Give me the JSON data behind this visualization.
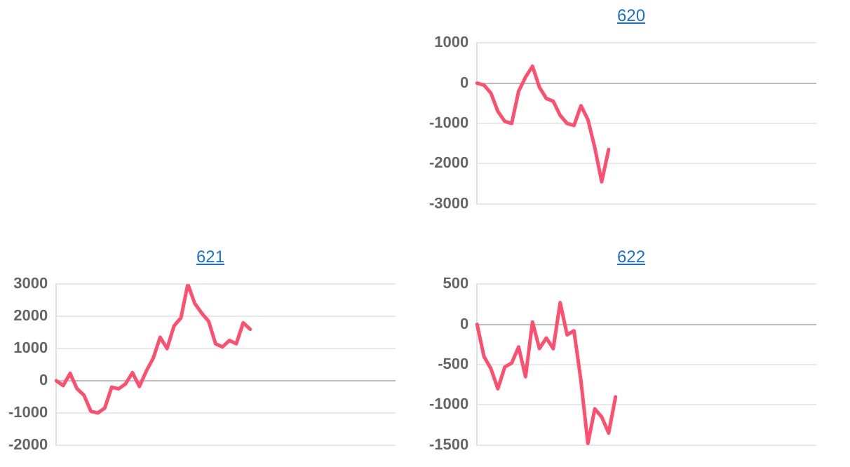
{
  "chart_data": [
    {
      "type": "line",
      "title": "620",
      "categories": [
        null,
        null,
        null,
        null,
        null,
        null,
        null,
        null,
        null,
        null,
        null,
        null,
        null,
        null,
        null,
        null,
        null,
        null,
        null,
        null,
        null,
        null,
        null,
        null,
        null,
        null,
        null,
        null,
        null,
        null,
        null,
        null,
        null,
        null,
        null,
        null,
        null,
        null,
        null,
        null,
        null,
        null,
        null,
        null,
        null,
        null,
        null,
        null,
        null,
        null
      ],
      "series": [
        {
          "color": "#ff4f6e",
          "values": [
            0,
            -50,
            -250,
            -700,
            -950,
            -1000,
            -200,
            150,
            420,
            -100,
            -380,
            -450,
            -800,
            -1000,
            -1050,
            -560,
            -900,
            -1600,
            -2450,
            -1650,
            null,
            null,
            null,
            null,
            null,
            null,
            null,
            null,
            null,
            null,
            null,
            null,
            null,
            null,
            null,
            null,
            null,
            null,
            null,
            null,
            null,
            null,
            null,
            null,
            null,
            null,
            null,
            null,
            null,
            null
          ]
        }
      ],
      "ylim": [
        -3000,
        1000
      ],
      "yticks": [
        -3000,
        -2000,
        -1000,
        0,
        1000
      ],
      "grid": "y",
      "legend": false,
      "marker": "none",
      "tick_labels": "y"
    },
    {
      "type": "line",
      "title": "621",
      "categories": [
        null,
        null,
        null,
        null,
        null,
        null,
        null,
        null,
        null,
        null,
        null,
        null,
        null,
        null,
        null,
        null,
        null,
        null,
        null,
        null,
        null,
        null,
        null,
        null,
        null,
        null,
        null,
        null,
        null,
        null,
        null,
        null,
        null,
        null,
        null,
        null,
        null,
        null,
        null,
        null,
        null,
        null,
        null,
        null,
        null,
        null,
        null,
        null,
        null,
        null
      ],
      "series": [
        {
          "color": "#ff4f6e",
          "values": [
            0,
            -150,
            230,
            -250,
            -450,
            -950,
            -1000,
            -850,
            -200,
            -250,
            -100,
            250,
            -180,
            300,
            700,
            1350,
            1000,
            1700,
            1950,
            3000,
            2400,
            2100,
            1850,
            1150,
            1050,
            1250,
            1150,
            1800,
            1600,
            null,
            null,
            null,
            null,
            null,
            null,
            null,
            null,
            null,
            null,
            null,
            null,
            null,
            null,
            null,
            null,
            null,
            null,
            null,
            null,
            null
          ]
        }
      ],
      "ylim": [
        -2000,
        3000
      ],
      "yticks": [
        -2000,
        -1000,
        0,
        1000,
        2000,
        3000
      ],
      "grid": "y",
      "legend": false,
      "marker": "none",
      "tick_labels": "y"
    },
    {
      "type": "line",
      "title": "622",
      "categories": [
        null,
        null,
        null,
        null,
        null,
        null,
        null,
        null,
        null,
        null,
        null,
        null,
        null,
        null,
        null,
        null,
        null,
        null,
        null,
        null,
        null,
        null,
        null,
        null,
        null,
        null,
        null,
        null,
        null,
        null,
        null,
        null,
        null,
        null,
        null,
        null,
        null,
        null,
        null,
        null,
        null,
        null,
        null,
        null,
        null,
        null,
        null,
        null,
        null,
        null
      ],
      "series": [
        {
          "color": "#ff4f6e",
          "values": [
            0,
            -400,
            -550,
            -800,
            -530,
            -480,
            -280,
            -650,
            30,
            -300,
            -170,
            -300,
            270,
            -130,
            -80,
            -700,
            -1480,
            -1050,
            -1150,
            -1350,
            -900,
            null,
            null,
            null,
            null,
            null,
            null,
            null,
            null,
            null,
            null,
            null,
            null,
            null,
            null,
            null,
            null,
            null,
            null,
            null,
            null,
            null,
            null,
            null,
            null,
            null,
            null,
            null,
            null,
            null
          ]
        }
      ],
      "ylim": [
        -1500,
        500
      ],
      "yticks": [
        -1500,
        -1000,
        -500,
        0,
        500
      ],
      "grid": "y",
      "legend": false,
      "marker": "none",
      "tick_labels": "y"
    }
  ]
}
